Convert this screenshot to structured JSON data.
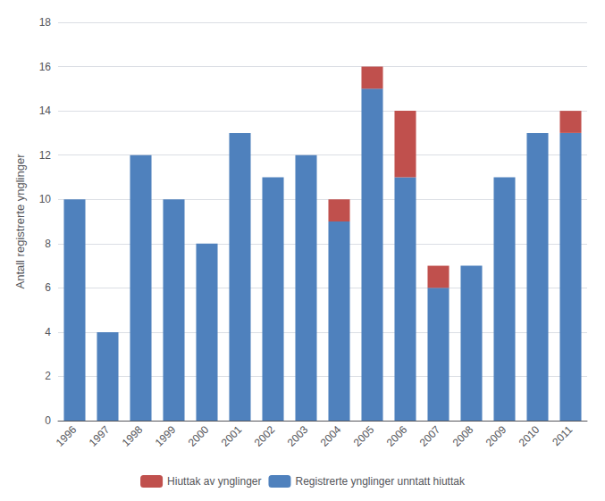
{
  "chart_data": {
    "type": "bar",
    "categories": [
      "1996",
      "1997",
      "1998",
      "1999",
      "2000",
      "2001",
      "2002",
      "2003",
      "2004",
      "2005",
      "2006",
      "2007",
      "2008",
      "2009",
      "2010",
      "2011"
    ],
    "series": [
      {
        "name": "Registrerte ynglinger unntatt hiuttak",
        "color": "#4F81BD",
        "values": [
          10,
          4,
          12,
          10,
          8,
          13,
          11,
          12,
          9,
          15,
          11,
          6,
          7,
          11,
          13,
          13
        ]
      },
      {
        "name": "Hiuttak av ynglinger",
        "color": "#C0504D",
        "values": [
          0,
          0,
          0,
          0,
          0,
          0,
          0,
          0,
          1,
          1,
          3,
          1,
          0,
          0,
          0,
          1
        ]
      }
    ],
    "ylabel": "Antall registrerte ynglinger",
    "ylim": [
      0,
      18
    ],
    "yticks": [
      0,
      2,
      4,
      6,
      8,
      10,
      12,
      14,
      16,
      18
    ],
    "grid": true,
    "stacked": true,
    "legend": "bottom"
  }
}
